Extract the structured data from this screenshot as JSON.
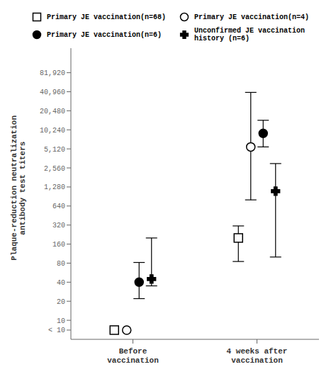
{
  "chart_data": {
    "type": "scatter",
    "ylabel": "Plaque-reduction neutralization\nantibody test titers",
    "categories": [
      "Before\nvaccination",
      "4 weeks after\nvaccination"
    ],
    "series": [
      {
        "name": "Primary JE vaccination(n=68)",
        "marker": "square_open",
        "color": "#000000",
        "values": [
          7,
          200
        ],
        "errors": [
          null,
          [
            115,
            110
          ]
        ]
      },
      {
        "name": "Primary JE vaccination(n=4)",
        "marker": "circle_open",
        "color": "#000000",
        "values": [
          7,
          5500
        ],
        "errors": [
          null,
          [
            4700,
            34500
          ]
        ]
      },
      {
        "name": "Primary JE vaccination(n=6)",
        "marker": "circle",
        "color": "#000000",
        "values": [
          40,
          9000
        ],
        "errors": [
          [
            18,
            42
          ],
          [
            3500,
            5500
          ]
        ]
      },
      {
        "name": "Unconfirmed JE vaccination\nhistory (n=6)",
        "marker": "plus",
        "color": "#000000",
        "values": [
          45,
          1100
        ],
        "errors": [
          [
            10,
            155
          ],
          [
            1000,
            1900
          ]
        ]
      }
    ],
    "ylim": [
      5,
      200000
    ],
    "yticks": [
      {
        "value": 7,
        "label": "< 10"
      },
      10,
      20,
      40,
      80,
      160,
      320,
      640,
      {
        "value": 1280,
        "label": "1,280"
      },
      {
        "value": 2560,
        "label": "2,560"
      },
      {
        "value": 5120,
        "label": "5,120"
      },
      {
        "value": 10240,
        "label": "10,240"
      },
      {
        "value": 20480,
        "label": "20,480"
      },
      {
        "value": 40960,
        "label": "40,960"
      },
      {
        "value": 81920,
        "label": "81,920"
      }
    ],
    "log": "y",
    "grid": false,
    "legend": "top"
  }
}
